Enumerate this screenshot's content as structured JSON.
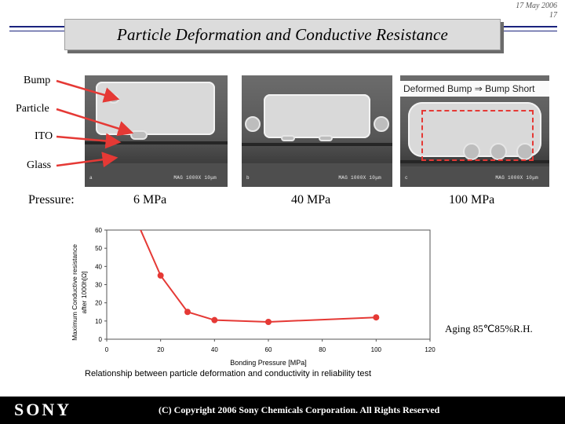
{
  "header": {
    "title": "Particle Deformation and Conductive Resistance",
    "date": "17 May 2006",
    "page": "17"
  },
  "labels": {
    "bump": "Bump",
    "particle": "Particle",
    "ito": "ITO",
    "glass": "Glass",
    "pressure": "Pressure:",
    "deformed": "Deformed Bump ⇒ Bump Short"
  },
  "photos": [
    {
      "pressure": "6 MPa",
      "scale_text": "MAG 1000X 10μm",
      "tag": "a"
    },
    {
      "pressure": "40 MPa",
      "scale_text": "MAG 1000X 10μm",
      "tag": "b"
    },
    {
      "pressure": "100 MPa",
      "scale_text": "MAG 1000X 10μm",
      "tag": "c"
    }
  ],
  "chart_data": {
    "type": "line",
    "xlabel": "Bonding Pressure  [MPa]",
    "ylabel": "Maximum Conductive resistance after 1000h[Ω]",
    "xlim": [
      0,
      120
    ],
    "ylim": [
      0,
      60
    ],
    "xticks": [
      0,
      20,
      40,
      60,
      80,
      100,
      120
    ],
    "yticks": [
      0,
      10,
      20,
      30,
      40,
      50,
      60
    ],
    "series": [
      {
        "x": [
          12,
          20,
          30,
          40,
          60,
          100
        ],
        "y": [
          62,
          35,
          15,
          10.5,
          9.5,
          12
        ],
        "markers": [
          false,
          true,
          true,
          true,
          true,
          true
        ]
      }
    ],
    "line_color": "#e53935",
    "annotation": "Aging 85℃85%R.H.",
    "caption": "Relationship between particle deformation and conductivity  in reliability test"
  },
  "footer": {
    "brand": "SONY",
    "copyright": "(C) Copyright 2006 Sony Chemicals Corporation. All Rights Reserved"
  },
  "colors": {
    "accent": "#1a237e",
    "arrow": "#e53935",
    "plot_bg": "#ffffff",
    "title_bg": "#dcdcdc"
  }
}
